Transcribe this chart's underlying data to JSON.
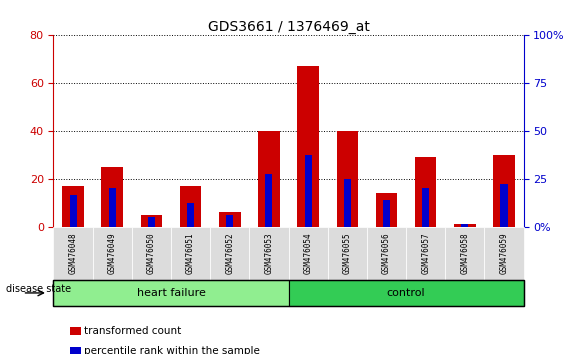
{
  "title": "GDS3661 / 1376469_at",
  "samples": [
    "GSM476048",
    "GSM476049",
    "GSM476050",
    "GSM476051",
    "GSM476052",
    "GSM476053",
    "GSM476054",
    "GSM476055",
    "GSM476056",
    "GSM476057",
    "GSM476058",
    "GSM476059"
  ],
  "red_values": [
    17,
    25,
    5,
    17,
    6,
    40,
    67,
    40,
    14,
    29,
    1,
    30
  ],
  "blue_values": [
    13,
    16,
    4,
    10,
    5,
    22,
    30,
    20,
    11,
    16,
    1,
    18
  ],
  "groups": [
    {
      "label": "heart failure",
      "start": 0,
      "end": 6,
      "color": "#90EE90"
    },
    {
      "label": "control",
      "start": 6,
      "end": 12,
      "color": "#33CC55"
    }
  ],
  "disease_state_label": "disease state",
  "legend_items": [
    {
      "label": "transformed count",
      "color": "#CC0000"
    },
    {
      "label": "percentile rank within the sample",
      "color": "#0000CC"
    }
  ],
  "ylim_left": [
    0,
    80
  ],
  "ylim_right": [
    0,
    100
  ],
  "yticks_left": [
    0,
    20,
    40,
    60,
    80
  ],
  "yticks_right": [
    0,
    25,
    50,
    75,
    100
  ],
  "ytick_labels_right": [
    "0%",
    "25",
    "50",
    "75",
    "100%"
  ],
  "red_color": "#CC0000",
  "blue_color": "#0000CC",
  "grid_color": "black",
  "sample_bg_color": "#DCDCDC",
  "plot_bg": "white"
}
